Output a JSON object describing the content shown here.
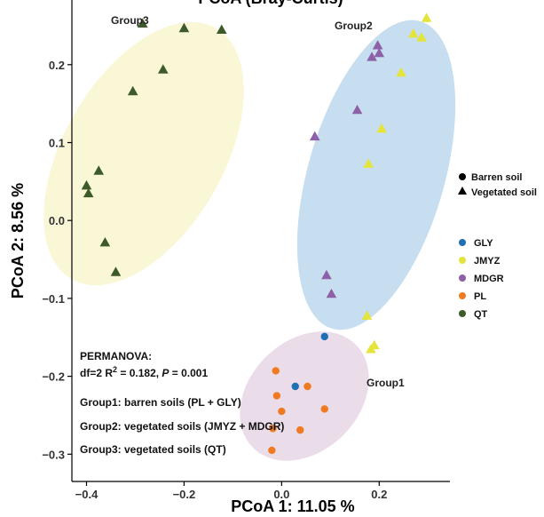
{
  "chart_data": {
    "type": "scatter",
    "title": "PCoA (Bray-Curtis)",
    "xlabel": "PCoA 1: 11.05 %",
    "ylabel": "PCoA 2: 8.56 %",
    "xlim": [
      -0.43,
      0.345
    ],
    "ylim": [
      -0.335,
      0.283
    ],
    "xticks": [
      -0.4,
      -0.2,
      0.0,
      0.2
    ],
    "xtick_labels": [
      "−0.4",
      "−0.2",
      "0.0",
      "0.2"
    ],
    "yticks": [
      0.2,
      0.1,
      0.0,
      -0.1,
      -0.2,
      -0.3
    ],
    "ytick_labels": [
      "0.2",
      "0.1",
      "0.0",
      "−0.1",
      "−0.2",
      "−0.3"
    ],
    "grid": false,
    "legend_position": "right",
    "colors": {
      "GLY": "#1f6fb4",
      "JMYZ": "#e4e43a",
      "MDGR": "#8e60a8",
      "PL": "#f07a22",
      "QT": "#3d5a2a",
      "ellipse_group1": "#e8d6e6",
      "ellipse_group2": "#bcd8ec",
      "ellipse_group3": "#f9f6d0"
    },
    "shape_legend": [
      {
        "label": "Barren soil",
        "shape": "circle"
      },
      {
        "label": "Vegetated soil",
        "shape": "triangle"
      }
    ],
    "color_legend": [
      "GLY",
      "JMYZ",
      "MDGR",
      "PL",
      "QT"
    ],
    "group_labels": [
      {
        "label": "Group1"
      },
      {
        "label": "Group2"
      },
      {
        "label": "Group3"
      }
    ],
    "annotations": {
      "permanova_title": "PERMANOVA:",
      "permanova_stats_prefix": "df=2 R",
      "permanova_stats_sup": "2",
      "permanova_stats_mid": " = 0.182, ",
      "permanova_stats_p": "P",
      "permanova_stats_suffix": " = 0.001",
      "group1_desc": "Group1: barren soils (PL + GLY)",
      "group2_desc": "Group2: vegetated soils (JMYZ + MDGR)",
      "group3_desc": "Group3: vegetated soils (QT)"
    },
    "series": [
      {
        "name": "GLY",
        "shape": "circle",
        "points": [
          [
            0.088,
            -0.149
          ],
          [
            0.028,
            -0.213
          ]
        ]
      },
      {
        "name": "PL",
        "shape": "circle",
        "points": [
          [
            -0.012,
            -0.193
          ],
          [
            -0.01,
            -0.225
          ],
          [
            0.0,
            -0.245
          ],
          [
            0.053,
            -0.213
          ],
          [
            0.088,
            -0.242
          ],
          [
            -0.018,
            -0.267
          ],
          [
            0.038,
            -0.269
          ],
          [
            -0.02,
            -0.295
          ]
        ]
      },
      {
        "name": "JMYZ",
        "shape": "triangle",
        "points": [
          [
            0.297,
            0.26
          ],
          [
            0.27,
            0.24
          ],
          [
            0.287,
            0.235
          ],
          [
            0.245,
            0.19
          ],
          [
            0.205,
            0.118
          ],
          [
            0.178,
            0.073
          ],
          [
            0.175,
            -0.122
          ],
          [
            0.19,
            -0.16
          ],
          [
            0.183,
            -0.165
          ]
        ]
      },
      {
        "name": "MDGR",
        "shape": "triangle",
        "points": [
          [
            0.197,
            0.225
          ],
          [
            0.2,
            0.215
          ],
          [
            0.185,
            0.21
          ],
          [
            0.155,
            0.142
          ],
          [
            0.068,
            0.108
          ],
          [
            0.092,
            -0.07
          ],
          [
            0.102,
            -0.094
          ]
        ]
      },
      {
        "name": "QT",
        "shape": "triangle",
        "points": [
          [
            -0.285,
            0.253
          ],
          [
            -0.2,
            0.247
          ],
          [
            -0.123,
            0.245
          ],
          [
            -0.243,
            0.194
          ],
          [
            -0.305,
            0.166
          ],
          [
            -0.375,
            0.064
          ],
          [
            -0.4,
            0.045
          ],
          [
            -0.396,
            0.035
          ],
          [
            -0.362,
            -0.028
          ],
          [
            -0.34,
            -0.066
          ]
        ]
      }
    ]
  }
}
